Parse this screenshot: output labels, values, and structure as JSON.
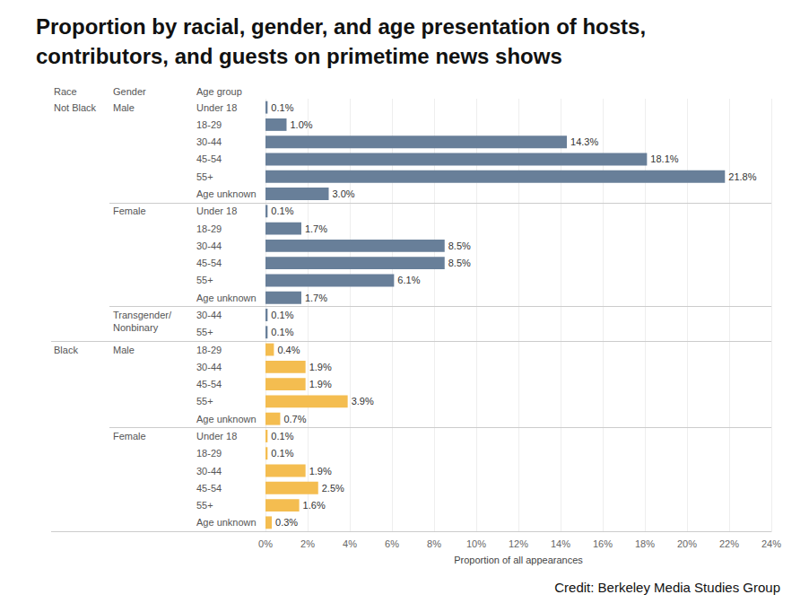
{
  "chart_data": {
    "type": "bar",
    "orientation": "horizontal",
    "title": "Proportion by racial, gender, and age presentation of hosts,\ncontributors, and guests on primetime news shows",
    "credit": "Credit: Berkeley Media Studies Group",
    "column_headers": [
      "Race",
      "Gender",
      "Age group"
    ],
    "race": [
      "Not Black",
      null,
      null,
      null,
      null,
      null,
      null,
      null,
      null,
      null,
      null,
      null,
      null,
      null,
      "Black",
      null,
      null,
      null,
      null,
      null,
      null,
      null,
      null,
      null,
      null
    ],
    "gender": [
      "Male",
      null,
      null,
      null,
      null,
      null,
      "Female",
      null,
      null,
      null,
      null,
      null,
      "Transgender/\nNonbinary",
      null,
      "Male",
      null,
      null,
      null,
      null,
      "Female",
      null,
      null,
      null,
      null,
      null
    ],
    "categories": [
      "Under 18",
      "18-29",
      "30-44",
      "45-54",
      "55+",
      "Age unknown",
      "Under 18",
      "18-29",
      "30-44",
      "45-54",
      "55+",
      "Age unknown",
      "30-44",
      "55+",
      "18-29",
      "30-44",
      "45-54",
      "55+",
      "Age unknown",
      "Under 18",
      "18-29",
      "30-44",
      "45-54",
      "55+",
      "Age unknown"
    ],
    "values": [
      0.1,
      1.0,
      14.3,
      18.1,
      21.8,
      3.0,
      0.1,
      1.7,
      8.5,
      8.5,
      6.1,
      1.7,
      0.1,
      0.1,
      0.4,
      1.9,
      1.9,
      3.9,
      0.7,
      0.1,
      0.1,
      1.9,
      2.5,
      1.6,
      0.3
    ],
    "value_labels": [
      "0.1%",
      "1.0%",
      "14.3%",
      "18.1%",
      "21.8%",
      "3.0%",
      "0.1%",
      "1.7%",
      "8.5%",
      "8.5%",
      "6.1%",
      "1.7%",
      "0.1%",
      "0.1%",
      "0.4%",
      "1.9%",
      "1.9%",
      "3.9%",
      "0.7%",
      "0.1%",
      "0.1%",
      "1.9%",
      "2.5%",
      "1.6%",
      "0.3%"
    ],
    "colors": [
      "#687f99",
      "#687f99",
      "#687f99",
      "#687f99",
      "#687f99",
      "#687f99",
      "#687f99",
      "#687f99",
      "#687f99",
      "#687f99",
      "#687f99",
      "#687f99",
      "#687f99",
      "#687f99",
      "#f4bd50",
      "#f4bd50",
      "#f4bd50",
      "#f4bd50",
      "#f4bd50",
      "#f4bd50",
      "#f4bd50",
      "#f4bd50",
      "#f4bd50",
      "#f4bd50",
      "#f4bd50"
    ],
    "x_label": "Proportion of all appearances",
    "xlim": [
      0,
      24
    ],
    "xticks": [
      {
        "value": 0,
        "label": "0%"
      },
      {
        "value": 2,
        "label": "2%"
      },
      {
        "value": 4,
        "label": "4%"
      },
      {
        "value": 6,
        "label": "6%"
      },
      {
        "value": 8,
        "label": "8%"
      },
      {
        "value": 10,
        "label": "10%"
      },
      {
        "value": 12,
        "label": "12%"
      },
      {
        "value": 14,
        "label": "14%"
      },
      {
        "value": 16,
        "label": "16%"
      },
      {
        "value": 18,
        "label": "18%"
      },
      {
        "value": 20,
        "label": "20%"
      },
      {
        "value": 22,
        "label": "22%"
      },
      {
        "value": 24,
        "label": "24%"
      }
    ],
    "grid": true,
    "data_labels": true
  }
}
